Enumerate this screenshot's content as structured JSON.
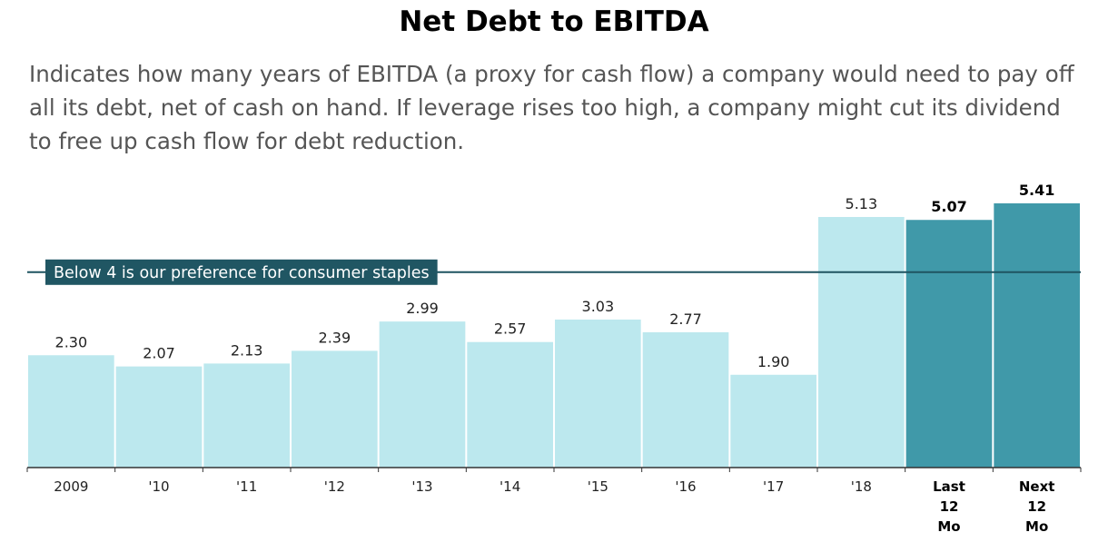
{
  "chart_data": {
    "type": "bar",
    "title": "Net Debt to EBITDA",
    "subtitle": "Indicates how many years of EBITDA (a proxy for cash flow) a company would need to pay off all its debt, net of cash on hand. If leverage rises too high, a company might cut its dividend to free up cash flow for debt reduction.",
    "categories": [
      "2009",
      "'10",
      "'11",
      "'12",
      "'13",
      "'14",
      "'15",
      "'16",
      "'17",
      "'18",
      "Last 12 Mo",
      "Next 12 Mo"
    ],
    "category_lines": [
      [
        "2009"
      ],
      [
        "'10"
      ],
      [
        "'11"
      ],
      [
        "'12"
      ],
      [
        "'13"
      ],
      [
        "'14"
      ],
      [
        "'15"
      ],
      [
        "'16"
      ],
      [
        "'17"
      ],
      [
        "'18"
      ],
      [
        "Last",
        "12",
        "Mo"
      ],
      [
        "Next",
        "12",
        "Mo"
      ]
    ],
    "values": [
      2.3,
      2.07,
      2.13,
      2.39,
      2.99,
      2.57,
      3.03,
      2.77,
      1.9,
      5.13,
      5.07,
      5.41
    ],
    "value_labels": [
      "2.30",
      "2.07",
      "2.13",
      "2.39",
      "2.99",
      "2.57",
      "3.03",
      "2.77",
      "1.90",
      "5.13",
      "5.07",
      "5.41"
    ],
    "highlighted": [
      false,
      false,
      false,
      false,
      false,
      false,
      false,
      false,
      false,
      false,
      true,
      true
    ],
    "ylim": [
      0,
      6
    ],
    "xlabel": "",
    "ylabel": "",
    "grid": false,
    "reference_line": {
      "value": 4,
      "label": "Below 4 is our preference for consumer staples"
    },
    "colors": {
      "bar": "#bce8ee",
      "bar_highlight": "#4099a9",
      "reference_line": "#1f5461",
      "reference_label_bg": "#205663",
      "axis": "#333333"
    }
  }
}
